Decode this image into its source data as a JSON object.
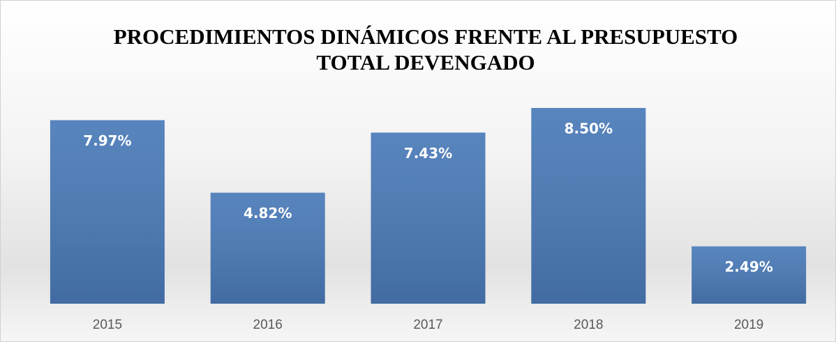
{
  "chart_data": {
    "type": "bar",
    "title": [
      "PROCEDIMIENTOS DINÁMICOS FRENTE AL PRESUPUESTO",
      "TOTAL DEVENGADO"
    ],
    "categories": [
      "2015",
      "2016",
      "2017",
      "2018",
      "2019"
    ],
    "values": [
      7.97,
      4.82,
      7.43,
      8.5,
      2.49
    ],
    "value_labels": [
      "7.97%",
      "4.82%",
      "7.43%",
      "8.50%",
      "2.49%"
    ],
    "color": "#4a7ab8"
  }
}
